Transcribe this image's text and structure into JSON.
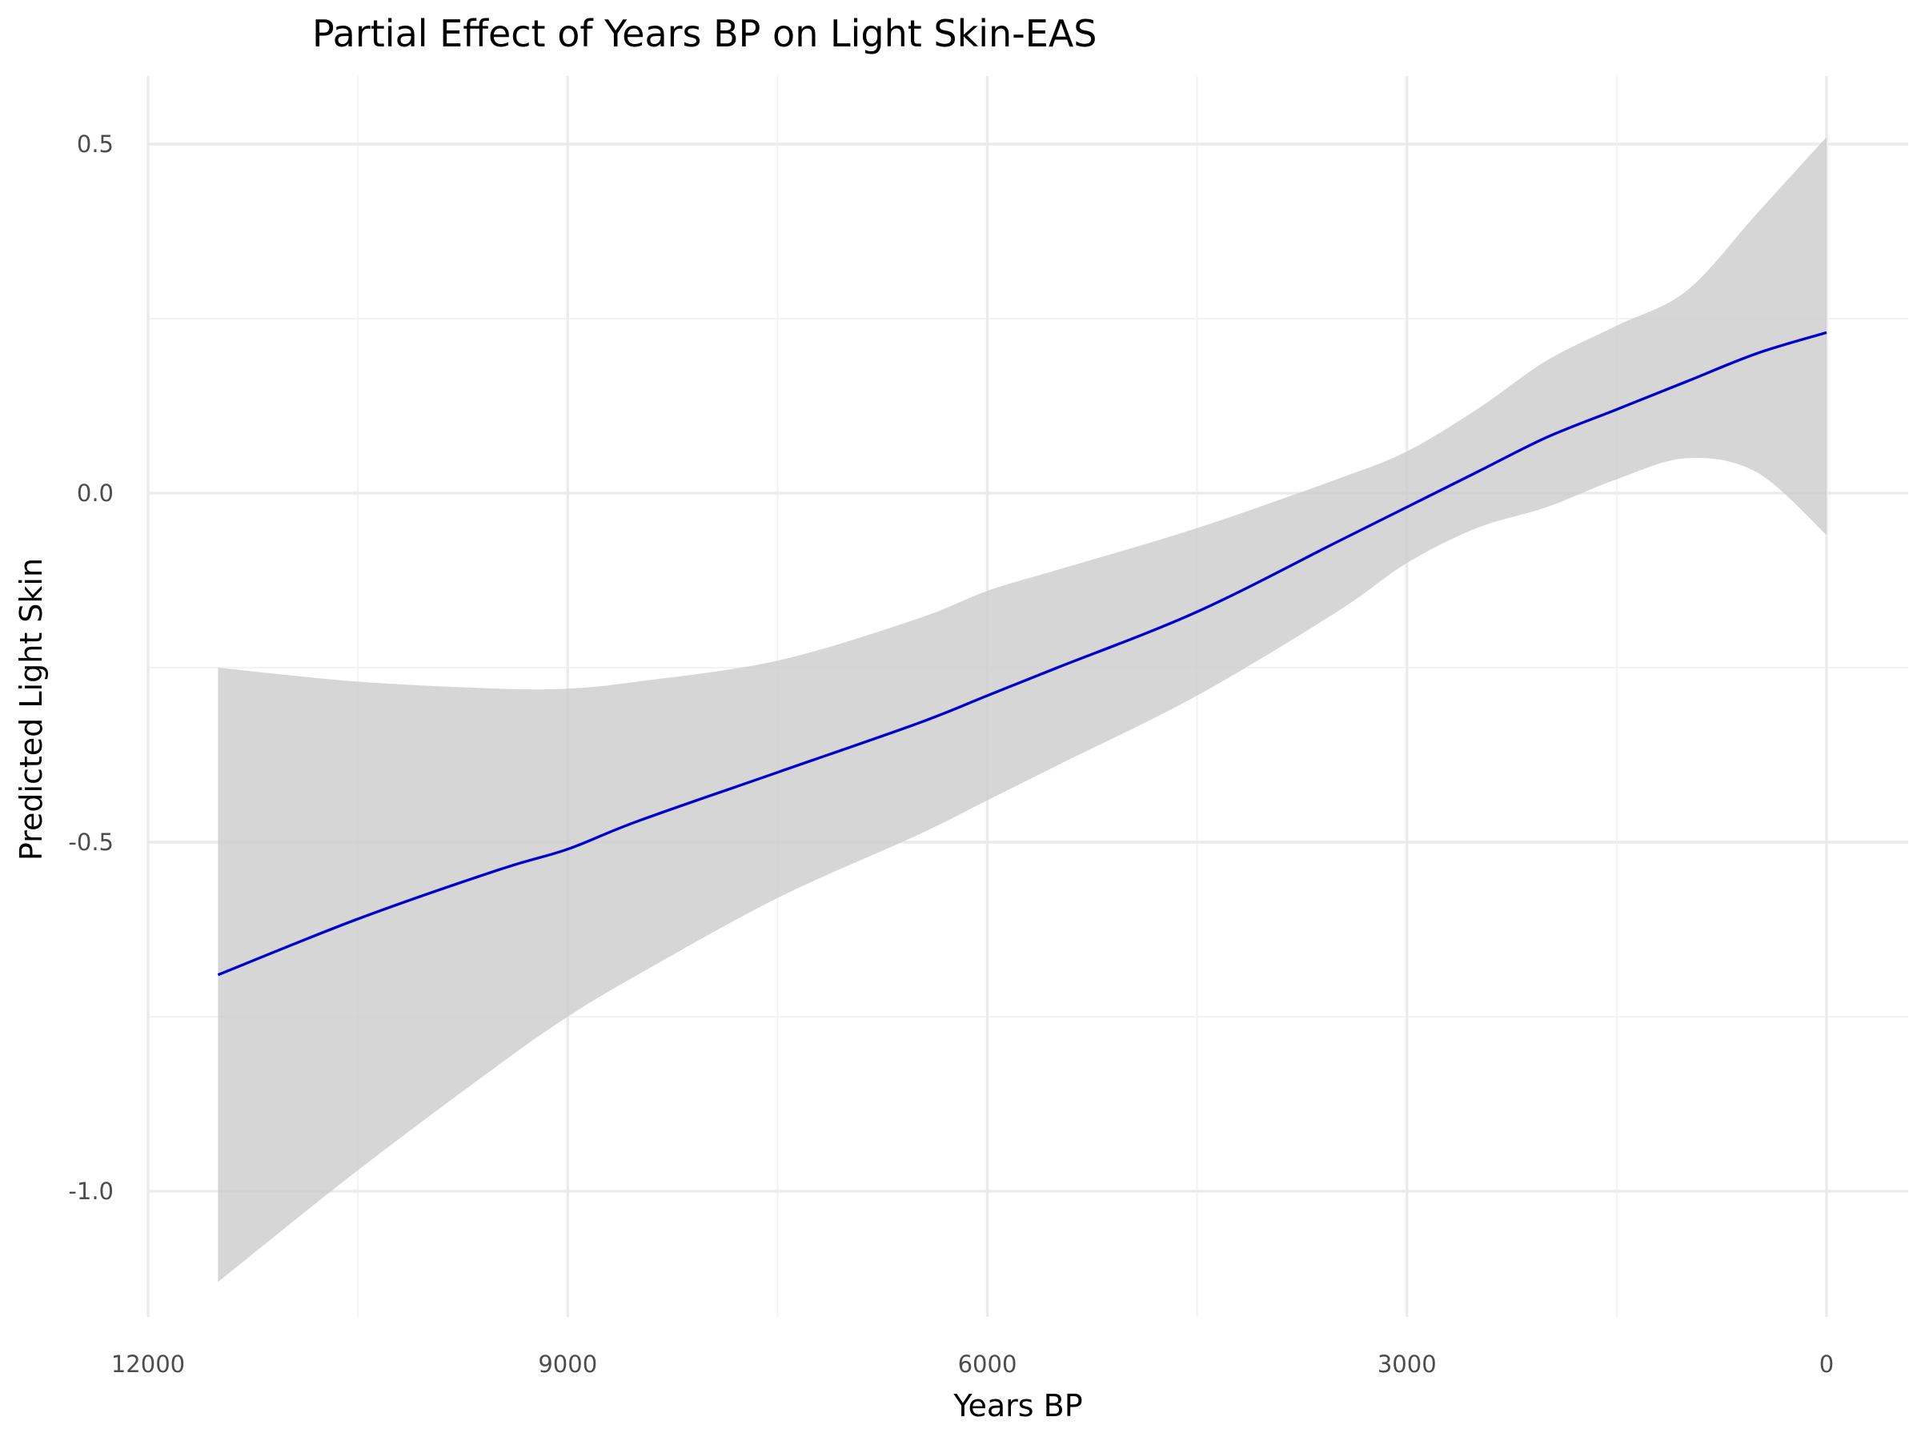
{
  "chart_data": {
    "type": "line",
    "title": "Partial Effect of Years BP on Light Skin-EAS",
    "xlabel": "Years BP",
    "ylabel": "Predicted Light Skin",
    "x_reversed": true,
    "xlim": [
      12000,
      0
    ],
    "ylim": [
      -1.15,
      0.55
    ],
    "xticks": [
      12000,
      9000,
      6000,
      3000,
      0
    ],
    "xtick_labels": [
      "12000",
      "9000",
      "6000",
      "3000",
      "0"
    ],
    "yticks": [
      0.5,
      0.0,
      -0.5,
      -1.0
    ],
    "ytick_labels": [
      "0.5",
      "0.0",
      "-0.5",
      "-1.0"
    ],
    "grid": true,
    "legend": "none",
    "series": [
      {
        "name": "fit",
        "color": "#0000cc",
        "x": [
          11500,
          10500,
          9500,
          9000,
          8500,
          7500,
          6500,
          6000,
          5500,
          4500,
          3500,
          3000,
          2500,
          2000,
          1500,
          1000,
          500,
          0
        ],
        "values": [
          -0.69,
          -0.61,
          -0.54,
          -0.51,
          -0.47,
          -0.4,
          -0.33,
          -0.29,
          -0.25,
          -0.17,
          -0.07,
          -0.02,
          0.03,
          0.08,
          0.12,
          0.16,
          0.2,
          0.23
        ]
      }
    ],
    "confidence_band": {
      "name": "95% CI",
      "color": "#cccccc",
      "x": [
        11500,
        10500,
        9500,
        9000,
        8500,
        7500,
        6500,
        6000,
        5500,
        4500,
        3500,
        3000,
        2500,
        2000,
        1500,
        1000,
        500,
        0
      ],
      "lower": [
        -1.13,
        -0.97,
        -0.82,
        -0.75,
        -0.69,
        -0.58,
        -0.49,
        -0.44,
        -0.39,
        -0.29,
        -0.17,
        -0.1,
        -0.05,
        -0.02,
        0.02,
        0.05,
        0.03,
        -0.06
      ],
      "upper": [
        -0.25,
        -0.27,
        -0.28,
        -0.28,
        -0.27,
        -0.24,
        -0.18,
        -0.14,
        -0.11,
        -0.05,
        0.02,
        0.06,
        0.12,
        0.19,
        0.24,
        0.29,
        0.4,
        0.51
      ]
    }
  }
}
